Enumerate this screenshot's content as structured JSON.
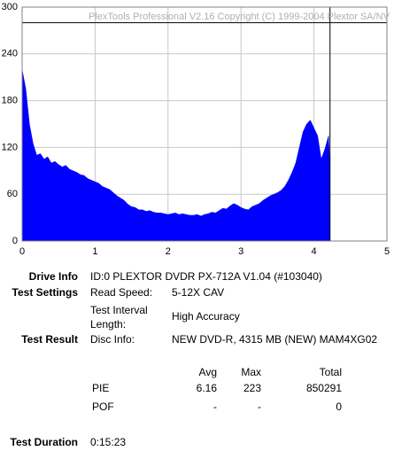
{
  "chart_data": {
    "type": "area",
    "annotation": "PlexTools Professional V2.16 Copyright (C) 1999-2004 Plextor SA/NV",
    "x": [
      0,
      0.05,
      0.1,
      0.15,
      0.2,
      0.25,
      0.3,
      0.35,
      0.4,
      0.45,
      0.5,
      0.55,
      0.6,
      0.65,
      0.7,
      0.75,
      0.8,
      0.85,
      0.9,
      0.95,
      1,
      1.05,
      1.1,
      1.15,
      1.2,
      1.25,
      1.3,
      1.35,
      1.4,
      1.45,
      1.5,
      1.55,
      1.6,
      1.65,
      1.7,
      1.75,
      1.8,
      1.85,
      1.9,
      1.95,
      2,
      2.05,
      2.1,
      2.15,
      2.2,
      2.25,
      2.3,
      2.35,
      2.4,
      2.45,
      2.5,
      2.55,
      2.6,
      2.65,
      2.7,
      2.75,
      2.8,
      2.85,
      2.9,
      2.95,
      3,
      3.05,
      3.1,
      3.15,
      3.2,
      3.25,
      3.3,
      3.35,
      3.4,
      3.45,
      3.5,
      3.55,
      3.6,
      3.65,
      3.7,
      3.75,
      3.8,
      3.85,
      3.9,
      3.95,
      4,
      4.05,
      4.1,
      4.15,
      4.2,
      4.22
    ],
    "values": [
      220,
      195,
      150,
      125,
      110,
      112,
      105,
      108,
      100,
      102,
      98,
      95,
      97,
      92,
      90,
      88,
      85,
      84,
      80,
      78,
      76,
      74,
      70,
      68,
      66,
      62,
      58,
      55,
      52,
      47,
      44,
      43,
      40,
      40,
      38,
      39,
      37,
      36,
      36,
      35,
      34,
      35,
      36,
      34,
      35,
      34,
      33,
      33,
      34,
      32,
      34,
      35,
      37,
      36,
      39,
      42,
      41,
      45,
      48,
      46,
      43,
      41,
      40,
      44,
      46,
      48,
      52,
      55,
      58,
      60,
      62,
      65,
      70,
      78,
      88,
      100,
      120,
      140,
      150,
      155,
      145,
      135,
      105,
      118,
      135,
      90
    ],
    "color": "#0000ff",
    "xlim": [
      0,
      5
    ],
    "xticks": [
      0,
      1,
      2,
      3,
      4,
      5
    ],
    "ylim": [
      0,
      300
    ],
    "yticks": [
      0,
      60,
      120,
      180,
      240,
      300
    ],
    "grid": true,
    "hline": 280,
    "vline": 4.22
  },
  "info": {
    "drive_label": "Drive Info",
    "drive": "ID:0 PLEXTOR DVDR PX-712A V1.04 (#103040)",
    "settings_label": "Test Settings",
    "read_speed_label": "Read Speed:",
    "read_speed": "5-12X CAV",
    "interval_label_1": "Test Interval",
    "interval_label_2": "Length:",
    "interval": "High Accuracy",
    "result_label": "Test Result",
    "disc_label": "Disc Info:",
    "disc": "NEW DVD-R, 4315 MB (NEW) MAM4XG02",
    "stats": {
      "headers": [
        "Avg",
        "Max",
        "Total"
      ],
      "rows": [
        [
          "PIE",
          "6.16",
          "223",
          "850291"
        ],
        [
          "POF",
          "-",
          "-",
          "0"
        ]
      ]
    },
    "duration_label": "Test Duration",
    "duration": "0:15:23"
  }
}
